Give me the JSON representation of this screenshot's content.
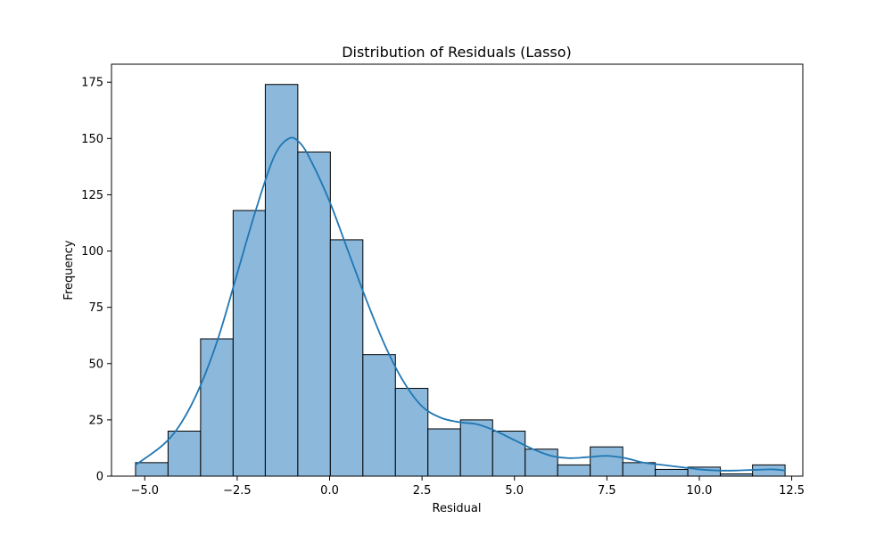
{
  "chart_data": {
    "type": "bar",
    "title": "Distribution of Residuals (Lasso)",
    "xlabel": "Residual",
    "ylabel": "Frequency",
    "xlim": [
      -5.9,
      12.8
    ],
    "ylim": [
      0,
      183
    ],
    "grid": false,
    "legend": "none",
    "x_ticks": [
      -5.0,
      -2.5,
      0.0,
      2.5,
      5.0,
      7.5,
      10.0,
      12.5
    ],
    "x_tick_labels": [
      "−5.0",
      "−2.5",
      "0.0",
      "2.5",
      "5.0",
      "7.5",
      "10.0",
      "12.5"
    ],
    "y_ticks": [
      0,
      25,
      50,
      75,
      100,
      125,
      150,
      175
    ],
    "y_tick_labels": [
      "0",
      "25",
      "50",
      "75",
      "100",
      "125",
      "150",
      "175"
    ],
    "bin_edges": [
      -5.25,
      -4.37,
      -3.49,
      -2.61,
      -1.74,
      -0.86,
      0.02,
      0.9,
      1.78,
      2.66,
      3.54,
      4.41,
      5.29,
      6.17,
      7.05,
      7.93,
      8.81,
      9.69,
      10.57,
      11.44,
      12.32
    ],
    "counts": [
      6,
      20,
      61,
      118,
      174,
      144,
      105,
      54,
      39,
      21,
      25,
      20,
      12,
      5,
      13,
      6,
      3,
      4,
      1,
      5
    ],
    "bar_color": "#8bb8db",
    "edge_color": "#000000",
    "kde_color": "#1f77b4",
    "kde_curve": {
      "x": [
        -5.25,
        -4.5,
        -4.0,
        -3.5,
        -3.0,
        -2.5,
        -2.0,
        -1.5,
        -1.1,
        -0.8,
        -0.5,
        0.0,
        0.5,
        1.0,
        1.5,
        2.0,
        2.5,
        3.0,
        3.5,
        4.0,
        4.5,
        5.0,
        5.5,
        6.0,
        6.5,
        7.0,
        7.5,
        8.0,
        8.5,
        9.0,
        9.5,
        10.0,
        10.5,
        11.0,
        11.5,
        12.0,
        12.32
      ],
      "y": [
        5,
        14,
        24,
        40,
        62,
        90,
        118,
        142,
        150,
        148,
        140,
        122,
        100,
        78,
        58,
        42,
        31,
        26,
        24,
        23,
        20,
        16,
        12,
        9,
        8,
        8.5,
        9,
        8,
        6,
        5,
        4,
        3,
        2.5,
        2.5,
        2.8,
        3,
        2.5
      ]
    }
  }
}
